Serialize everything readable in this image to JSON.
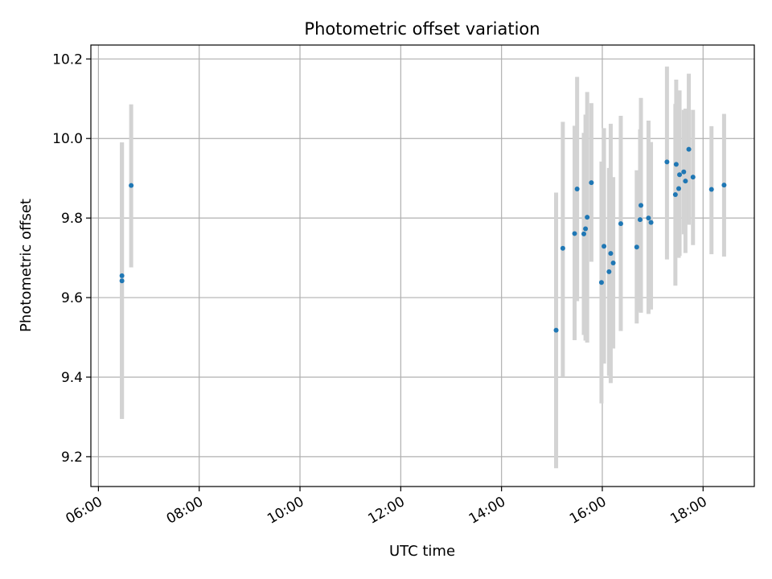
{
  "chart_data": {
    "type": "scatter",
    "title": "Photometric offset variation",
    "xlabel": "UTC time",
    "ylabel": "Photometric offset",
    "x_unit": "hours UTC",
    "xlim": [
      "05:51",
      "19:01"
    ],
    "ylim": [
      9.125,
      10.235
    ],
    "x_ticks": [
      "06:00",
      "08:00",
      "10:00",
      "12:00",
      "14:00",
      "16:00",
      "18:00"
    ],
    "y_ticks": [
      "9.2",
      "9.4",
      "9.6",
      "9.8",
      "10.0",
      "10.2"
    ],
    "grid": true,
    "legend": false,
    "colors": {
      "marker": "#1f77b4",
      "errorbar": "#d3d3d3",
      "grid": "#b0b0b0"
    },
    "series": [
      {
        "points": [
          {
            "x": "06:28",
            "y": 9.655,
            "lo": 9.295,
            "hi": 9.99
          },
          {
            "x": "06:28",
            "y": 9.642,
            "lo": 9.295,
            "hi": 9.99
          },
          {
            "x": "06:39",
            "y": 9.882,
            "lo": 9.676,
            "hi": 10.086
          },
          {
            "x": "15:05",
            "y": 9.518,
            "lo": 9.171,
            "hi": 9.864
          },
          {
            "x": "15:13",
            "y": 9.724,
            "lo": 9.402,
            "hi": 10.042
          },
          {
            "x": "15:27",
            "y": 9.761,
            "lo": 9.493,
            "hi": 10.032
          },
          {
            "x": "15:30",
            "y": 9.873,
            "lo": 9.591,
            "hi": 10.155
          },
          {
            "x": "15:38",
            "y": 9.76,
            "lo": 9.506,
            "hi": 10.014
          },
          {
            "x": "15:40",
            "y": 9.773,
            "lo": 9.492,
            "hi": 10.06
          },
          {
            "x": "15:42",
            "y": 9.802,
            "lo": 9.487,
            "hi": 10.117
          },
          {
            "x": "15:47",
            "y": 9.889,
            "lo": 9.69,
            "hi": 10.089
          },
          {
            "x": "15:59",
            "y": 9.638,
            "lo": 9.334,
            "hi": 9.942
          },
          {
            "x": "16:02",
            "y": 9.729,
            "lo": 9.434,
            "hi": 10.026
          },
          {
            "x": "16:08",
            "y": 9.665,
            "lo": 9.403,
            "hi": 9.926
          },
          {
            "x": "16:10",
            "y": 9.711,
            "lo": 9.385,
            "hi": 10.037
          },
          {
            "x": "16:13",
            "y": 9.687,
            "lo": 9.472,
            "hi": 9.903
          },
          {
            "x": "16:22",
            "y": 9.786,
            "lo": 9.516,
            "hi": 10.057
          },
          {
            "x": "16:41",
            "y": 9.727,
            "lo": 9.535,
            "hi": 9.92
          },
          {
            "x": "16:45",
            "y": 9.796,
            "lo": 9.565,
            "hi": 10.023
          },
          {
            "x": "16:46",
            "y": 9.832,
            "lo": 9.562,
            "hi": 10.102
          },
          {
            "x": "16:55",
            "y": 9.8,
            "lo": 9.559,
            "hi": 10.045
          },
          {
            "x": "16:58",
            "y": 9.789,
            "lo": 9.57,
            "hi": 9.991
          },
          {
            "x": "17:17",
            "y": 9.941,
            "lo": 9.696,
            "hi": 10.181
          },
          {
            "x": "17:27",
            "y": 9.859,
            "lo": 9.63,
            "hi": 10.087
          },
          {
            "x": "17:28",
            "y": 9.935,
            "lo": 9.719,
            "hi": 10.148
          },
          {
            "x": "17:31",
            "y": 9.874,
            "lo": 9.7,
            "hi": 10.048
          },
          {
            "x": "17:32",
            "y": 9.909,
            "lo": 9.705,
            "hi": 10.121
          },
          {
            "x": "17:37",
            "y": 9.916,
            "lo": 9.759,
            "hi": 10.072
          },
          {
            "x": "17:39",
            "y": 9.893,
            "lo": 9.712,
            "hi": 10.075
          },
          {
            "x": "17:43",
            "y": 9.973,
            "lo": 9.783,
            "hi": 10.163
          },
          {
            "x": "17:48",
            "y": 9.903,
            "lo": 9.732,
            "hi": 10.072
          },
          {
            "x": "18:10",
            "y": 9.872,
            "lo": 9.709,
            "hi": 10.031
          },
          {
            "x": "18:25",
            "y": 9.883,
            "lo": 9.703,
            "hi": 10.062
          }
        ]
      }
    ]
  }
}
